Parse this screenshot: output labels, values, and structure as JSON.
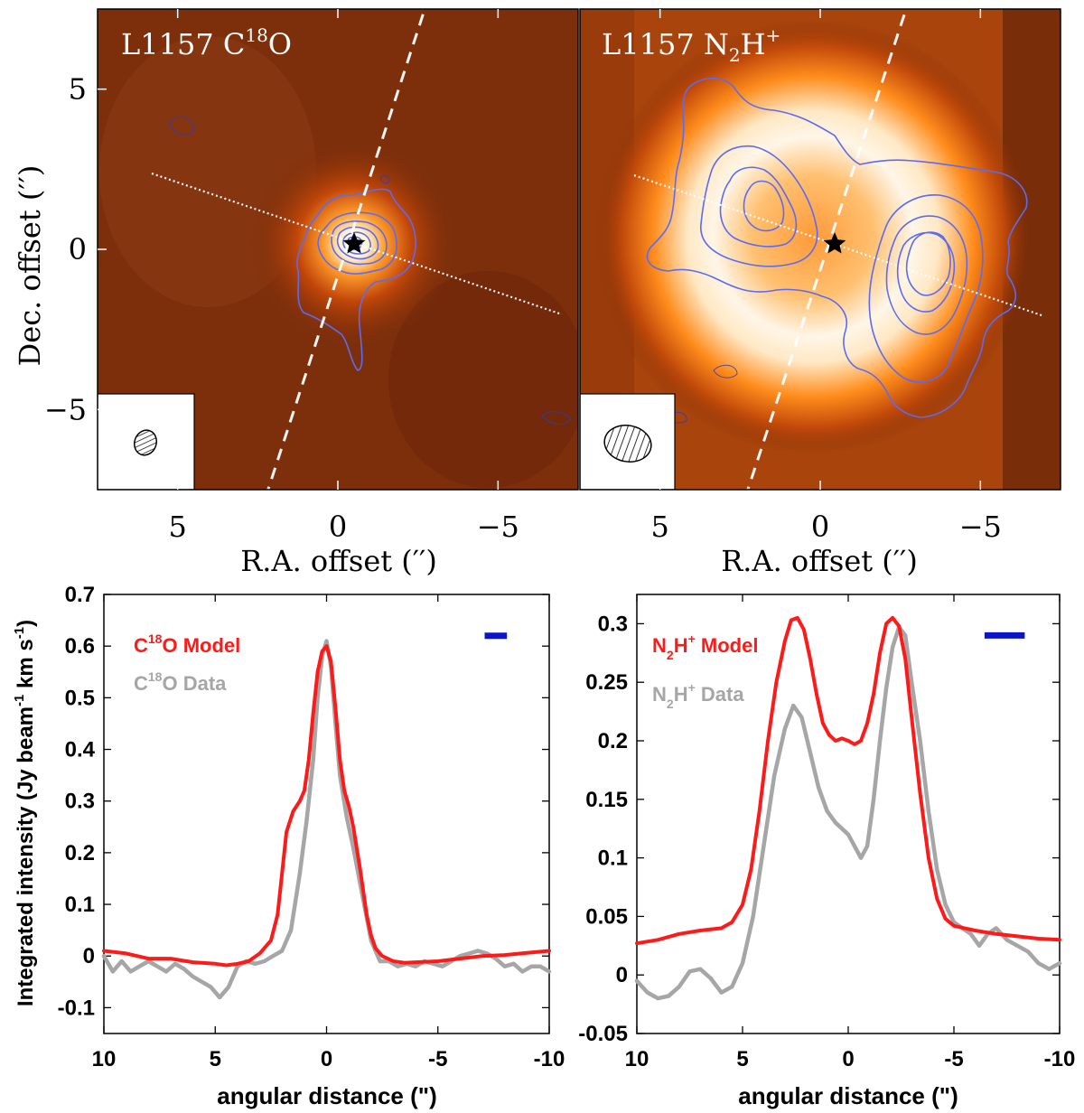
{
  "chart_data": [
    {
      "type": "heatmap",
      "title": "L1157 C18O",
      "title_main": "L1157 C",
      "title_sup": "18",
      "title_tail": "O",
      "xlabel": "R.A. offset ('')",
      "xlabel_text": "R.A. offset (",
      "xlabel_unit": "′′",
      "xlabel_close": ")",
      "ylabel": "Dec. offset ('')",
      "ylabel_text": "Dec. offset (",
      "ylabel_unit": "′′",
      "ylabel_close": ")",
      "xlim": [
        7.5,
        -7.5
      ],
      "ylim": [
        -7.5,
        7.5
      ],
      "xticks": [
        5,
        0,
        -5
      ],
      "xticklabels": [
        "5",
        "0",
        "−5"
      ],
      "yticks": [
        5,
        0,
        -5
      ],
      "yticklabels": [
        "5",
        "0",
        "−5"
      ],
      "source_offset": [
        0,
        0
      ],
      "dashed_cut_pa_deg": 15,
      "dotted_cut_pa_deg": 105,
      "contour_color": "#5b6cf0"
    },
    {
      "type": "heatmap",
      "title": "L1157 N2H+",
      "title_main": "L1157 N",
      "title_sub": "2",
      "title_mid": "H",
      "title_sup": "+",
      "xlabel": "R.A. offset ('')",
      "xlabel_text": "R.A. offset (",
      "xlabel_unit": "′′",
      "xlabel_close": ")",
      "xlim": [
        7.5,
        -7.5
      ],
      "ylim": [
        -7.5,
        7.5
      ],
      "xticks": [
        5,
        0,
        -5
      ],
      "xticklabels": [
        "5",
        "0",
        "−5"
      ],
      "source_offset": [
        0,
        0
      ],
      "dashed_cut_pa_deg": 15,
      "dotted_cut_pa_deg": 105,
      "contour_color": "#5b6cf0"
    },
    {
      "type": "line",
      "xlabel": "angular distance (\")",
      "ylabel": "Integrated intensity (Jy beam-1 km s-1)",
      "ylabel_a": "Integrated intensity (Jy beam",
      "ylabel_sup1": "-1",
      "ylabel_b": " km s",
      "ylabel_sup2": "-1",
      "ylabel_c": ")",
      "xlim": [
        10,
        -10
      ],
      "ylim": [
        -0.15,
        0.7
      ],
      "xticks": [
        10,
        5,
        0,
        -5,
        -10
      ],
      "xticklabels": [
        "10",
        "5",
        "0",
        "-5",
        "-10"
      ],
      "yticks": [
        -0.1,
        0,
        0.1,
        0.2,
        0.3,
        0.4,
        0.5,
        0.6,
        0.7
      ],
      "yticklabels": [
        "-0.1",
        "0",
        "0.1",
        "0.2",
        "0.3",
        "0.4",
        "0.5",
        "0.6",
        "0.7"
      ],
      "legend": {
        "model_main": "C",
        "model_sup": "18",
        "model_tail": "O Model",
        "data_main": "C",
        "data_sup": "18",
        "data_tail": "O Data"
      },
      "beam_bar": {
        "center_x": -7.6,
        "width_x": 1.0,
        "y": 0.62
      },
      "series": [
        {
          "name": "C18O Model",
          "color": "#ff1a1a",
          "x": [
            10,
            9,
            8,
            7,
            6,
            5,
            4.5,
            4,
            3.5,
            3,
            2.5,
            2.2,
            2,
            1.8,
            1.5,
            1.2,
            1,
            0.8,
            0.6,
            0.4,
            0.2,
            0,
            -0.2,
            -0.4,
            -0.6,
            -0.8,
            -1,
            -1.2,
            -1.5,
            -1.8,
            -2,
            -2.2,
            -2.5,
            -3,
            -3.5,
            -4,
            -5,
            -6,
            -7,
            -8,
            -9,
            -10
          ],
          "values": [
            0.01,
            0.005,
            -0.005,
            -0.005,
            -0.012,
            -0.015,
            -0.018,
            -0.015,
            -0.01,
            0.005,
            0.03,
            0.08,
            0.16,
            0.24,
            0.28,
            0.3,
            0.32,
            0.38,
            0.47,
            0.55,
            0.59,
            0.6,
            0.57,
            0.48,
            0.38,
            0.32,
            0.29,
            0.25,
            0.17,
            0.08,
            0.04,
            0.015,
            0,
            -0.01,
            -0.013,
            -0.012,
            -0.01,
            -0.005,
            0,
            0.002,
            0.006,
            0.01
          ]
        },
        {
          "name": "C18O Data",
          "color": "#a6a6a6",
          "x": [
            10,
            9.6,
            9.2,
            8.8,
            8.4,
            8,
            7.6,
            7.2,
            6.8,
            6.4,
            6,
            5.6,
            5.2,
            4.8,
            4.4,
            4,
            3.6,
            3.2,
            2.8,
            2.4,
            2,
            1.6,
            1.2,
            0.9,
            0.6,
            0.4,
            0.2,
            0,
            -0.2,
            -0.4,
            -0.6,
            -0.9,
            -1.2,
            -1.6,
            -2,
            -2.4,
            -2.8,
            -3.2,
            -3.6,
            -4,
            -4.4,
            -4.8,
            -5.2,
            -5.6,
            -6,
            -6.4,
            -6.8,
            -7.2,
            -7.6,
            -8,
            -8.4,
            -8.8,
            -9.2,
            -9.6,
            -10
          ],
          "values": [
            0,
            -0.03,
            -0.01,
            -0.03,
            -0.02,
            -0.01,
            -0.02,
            -0.03,
            -0.015,
            -0.025,
            -0.04,
            -0.05,
            -0.06,
            -0.08,
            -0.06,
            -0.02,
            -0.01,
            -0.015,
            -0.01,
            0,
            0.01,
            0.05,
            0.16,
            0.26,
            0.38,
            0.5,
            0.58,
            0.61,
            0.56,
            0.45,
            0.35,
            0.27,
            0.21,
            0.12,
            0.03,
            -0.01,
            -0.01,
            -0.02,
            -0.015,
            -0.02,
            -0.01,
            -0.015,
            -0.02,
            -0.01,
            0,
            0.005,
            0.01,
            0.005,
            -0.005,
            -0.02,
            -0.015,
            -0.03,
            -0.02,
            -0.02,
            -0.03
          ]
        }
      ]
    },
    {
      "type": "line",
      "xlabel": "angular distance (\")",
      "xlim": [
        10,
        -10
      ],
      "ylim": [
        -0.05,
        0.325
      ],
      "xticks": [
        10,
        5,
        0,
        -5,
        -10
      ],
      "xticklabels": [
        "10",
        "5",
        "0",
        "-5",
        "-10"
      ],
      "yticks": [
        -0.05,
        0,
        0.05,
        0.1,
        0.15,
        0.2,
        0.25,
        0.3
      ],
      "yticklabels": [
        "-0.05",
        "0",
        "0.05",
        "0.1",
        "0.15",
        "0.2",
        "0.25",
        "0.3"
      ],
      "legend": {
        "model_main": "N",
        "model_sub": "2",
        "model_mid": "H",
        "model_sup": "+",
        "model_tail": " Model",
        "data_main": "N",
        "data_sub": "2",
        "data_mid": "H",
        "data_sup": "+",
        "data_tail": " Data"
      },
      "beam_bar": {
        "center_x": -7.4,
        "width_x": 1.9,
        "y": 0.29
      },
      "series": [
        {
          "name": "N2H+ Model",
          "color": "#ff1a1a",
          "x": [
            10,
            9,
            8,
            7,
            6,
            5.5,
            5,
            4.6,
            4.2,
            3.8,
            3.4,
            3,
            2.7,
            2.4,
            2.1,
            1.8,
            1.5,
            1.2,
            0.9,
            0.6,
            0.3,
            0,
            -0.3,
            -0.6,
            -0.9,
            -1.2,
            -1.5,
            -1.8,
            -2.1,
            -2.4,
            -2.7,
            -3,
            -3.4,
            -3.8,
            -4.2,
            -4.6,
            -5,
            -5.5,
            -6,
            -7,
            -8,
            -9,
            -10
          ],
          "values": [
            0.027,
            0.03,
            0.035,
            0.038,
            0.04,
            0.045,
            0.06,
            0.09,
            0.14,
            0.2,
            0.25,
            0.285,
            0.303,
            0.305,
            0.295,
            0.27,
            0.24,
            0.215,
            0.205,
            0.2,
            0.202,
            0.2,
            0.197,
            0.2,
            0.215,
            0.24,
            0.275,
            0.3,
            0.305,
            0.298,
            0.27,
            0.22,
            0.155,
            0.1,
            0.065,
            0.048,
            0.042,
            0.04,
            0.038,
            0.035,
            0.033,
            0.031,
            0.03
          ]
        },
        {
          "name": "N2H+ Data",
          "color": "#a6a6a6",
          "x": [
            10,
            9.5,
            9,
            8.5,
            8,
            7.5,
            7,
            6.5,
            6,
            5.5,
            5,
            4.5,
            4,
            3.5,
            3,
            2.6,
            2.2,
            1.8,
            1.4,
            1,
            0.6,
            0.3,
            0,
            -0.3,
            -0.6,
            -0.9,
            -1.2,
            -1.5,
            -1.8,
            -2.1,
            -2.4,
            -2.7,
            -3,
            -3.4,
            -3.8,
            -4.2,
            -4.6,
            -5,
            -5.4,
            -5.8,
            -6.2,
            -6.6,
            -7,
            -7.5,
            -8,
            -8.5,
            -9,
            -9.5,
            -10
          ],
          "values": [
            -0.005,
            -0.015,
            -0.02,
            -0.018,
            -0.01,
            0.003,
            0.005,
            -0.003,
            -0.015,
            -0.01,
            0.01,
            0.05,
            0.11,
            0.17,
            0.21,
            0.23,
            0.22,
            0.19,
            0.16,
            0.14,
            0.13,
            0.125,
            0.12,
            0.11,
            0.1,
            0.11,
            0.15,
            0.2,
            0.245,
            0.28,
            0.297,
            0.29,
            0.25,
            0.2,
            0.14,
            0.09,
            0.06,
            0.045,
            0.04,
            0.035,
            0.025,
            0.035,
            0.04,
            0.03,
            0.025,
            0.02,
            0.01,
            0.005,
            0.01
          ]
        }
      ]
    }
  ]
}
